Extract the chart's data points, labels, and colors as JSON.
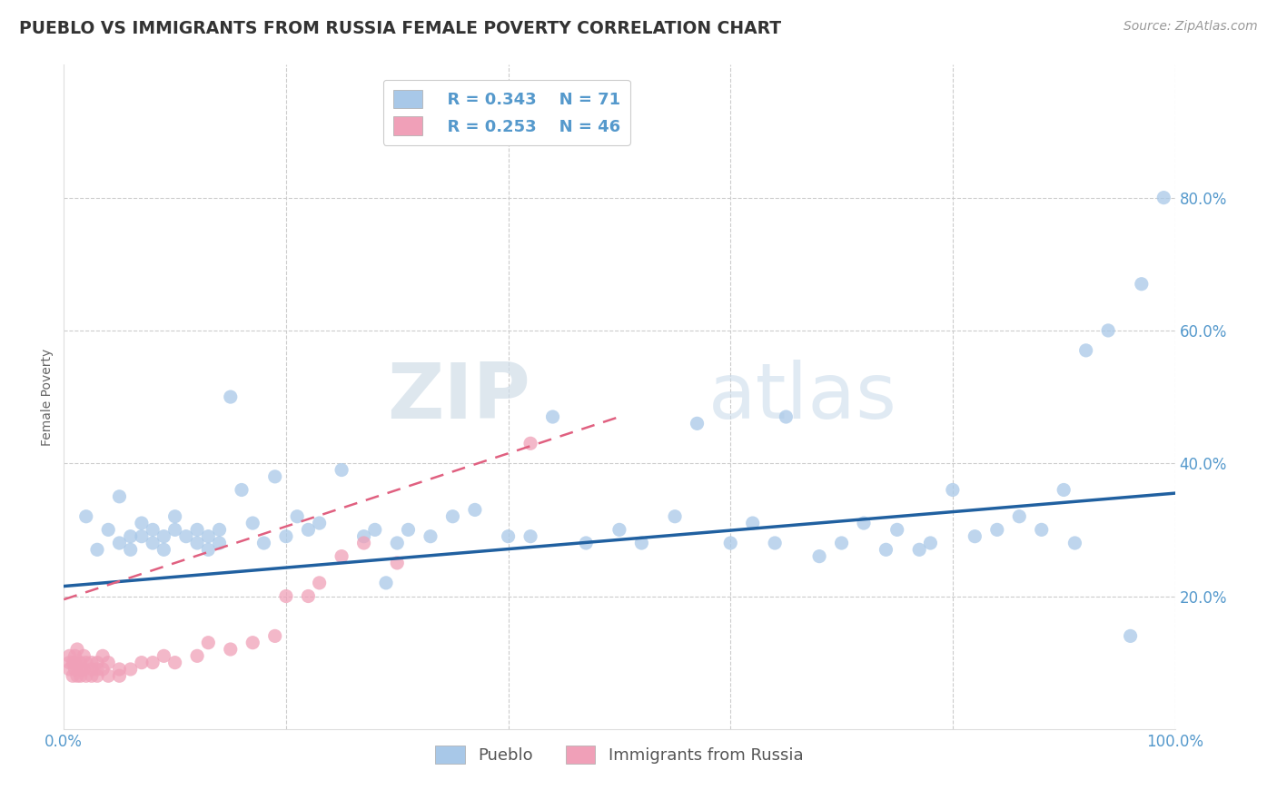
{
  "title": "PUEBLO VS IMMIGRANTS FROM RUSSIA FEMALE POVERTY CORRELATION CHART",
  "source": "Source: ZipAtlas.com",
  "ylabel_label": "Female Poverty",
  "xlim": [
    0,
    1.0
  ],
  "ylim": [
    0,
    1.0
  ],
  "watermark_zip": "ZIP",
  "watermark_atlas": "atlas",
  "pueblo_color": "#a8c8e8",
  "russia_color": "#f0a0b8",
  "pueblo_line_color": "#2060a0",
  "russia_line_color": "#e06080",
  "grid_color": "#cccccc",
  "background_color": "#ffffff",
  "legend_pueblo_R": "R = 0.343",
  "legend_pueblo_N": "N = 71",
  "legend_russia_R": "R = 0.253",
  "legend_russia_N": "N = 46",
  "pueblo_legend_label": "Pueblo",
  "russia_legend_label": "Immigrants from Russia",
  "pueblo_x": [
    0.02,
    0.03,
    0.04,
    0.05,
    0.05,
    0.06,
    0.06,
    0.07,
    0.07,
    0.08,
    0.08,
    0.09,
    0.09,
    0.1,
    0.1,
    0.11,
    0.12,
    0.12,
    0.13,
    0.13,
    0.14,
    0.14,
    0.15,
    0.16,
    0.17,
    0.18,
    0.19,
    0.2,
    0.21,
    0.22,
    0.23,
    0.25,
    0.27,
    0.28,
    0.29,
    0.3,
    0.31,
    0.33,
    0.35,
    0.37,
    0.4,
    0.42,
    0.44,
    0.47,
    0.5,
    0.52,
    0.55,
    0.57,
    0.6,
    0.62,
    0.64,
    0.65,
    0.68,
    0.7,
    0.72,
    0.74,
    0.75,
    0.77,
    0.78,
    0.8,
    0.82,
    0.84,
    0.86,
    0.88,
    0.9,
    0.91,
    0.92,
    0.94,
    0.96,
    0.97,
    0.99
  ],
  "pueblo_y": [
    0.32,
    0.27,
    0.3,
    0.28,
    0.35,
    0.29,
    0.27,
    0.31,
    0.29,
    0.3,
    0.28,
    0.27,
    0.29,
    0.32,
    0.3,
    0.29,
    0.28,
    0.3,
    0.27,
    0.29,
    0.3,
    0.28,
    0.5,
    0.36,
    0.31,
    0.28,
    0.38,
    0.29,
    0.32,
    0.3,
    0.31,
    0.39,
    0.29,
    0.3,
    0.22,
    0.28,
    0.3,
    0.29,
    0.32,
    0.33,
    0.29,
    0.29,
    0.47,
    0.28,
    0.3,
    0.28,
    0.32,
    0.46,
    0.28,
    0.31,
    0.28,
    0.47,
    0.26,
    0.28,
    0.31,
    0.27,
    0.3,
    0.27,
    0.28,
    0.36,
    0.29,
    0.3,
    0.32,
    0.3,
    0.36,
    0.28,
    0.57,
    0.6,
    0.14,
    0.67,
    0.8
  ],
  "russia_x": [
    0.005,
    0.005,
    0.005,
    0.008,
    0.008,
    0.01,
    0.01,
    0.01,
    0.012,
    0.012,
    0.015,
    0.015,
    0.015,
    0.018,
    0.018,
    0.02,
    0.02,
    0.025,
    0.025,
    0.025,
    0.03,
    0.03,
    0.03,
    0.035,
    0.035,
    0.04,
    0.04,
    0.05,
    0.05,
    0.06,
    0.07,
    0.08,
    0.09,
    0.1,
    0.12,
    0.13,
    0.15,
    0.17,
    0.19,
    0.2,
    0.22,
    0.23,
    0.25,
    0.27,
    0.3,
    0.42
  ],
  "russia_y": [
    0.1,
    0.11,
    0.09,
    0.08,
    0.1,
    0.09,
    0.11,
    0.1,
    0.08,
    0.12,
    0.09,
    0.08,
    0.1,
    0.09,
    0.11,
    0.08,
    0.1,
    0.09,
    0.1,
    0.08,
    0.08,
    0.09,
    0.1,
    0.09,
    0.11,
    0.08,
    0.1,
    0.09,
    0.08,
    0.09,
    0.1,
    0.1,
    0.11,
    0.1,
    0.11,
    0.13,
    0.12,
    0.13,
    0.14,
    0.2,
    0.2,
    0.22,
    0.26,
    0.28,
    0.25,
    0.43
  ],
  "pueblo_line_x0": 0.0,
  "pueblo_line_y0": 0.215,
  "pueblo_line_x1": 1.0,
  "pueblo_line_y1": 0.355,
  "russia_line_x0": 0.0,
  "russia_line_y0": 0.195,
  "russia_line_x1": 0.5,
  "russia_line_y1": 0.47
}
